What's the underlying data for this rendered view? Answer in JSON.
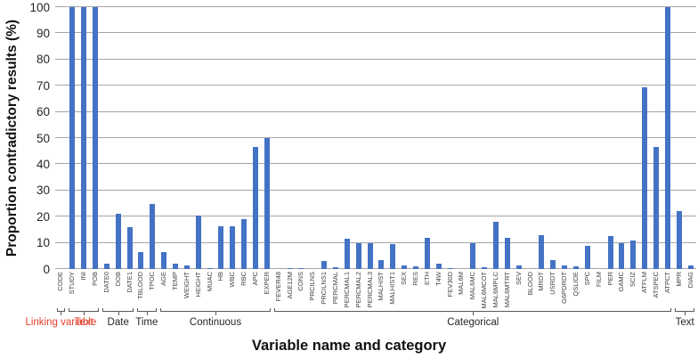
{
  "chart_data": {
    "type": "bar",
    "title": "",
    "ylabel": "Proportion contradictory results (%)",
    "xlabel": "Variable name and category",
    "ylim": [
      0,
      100
    ],
    "yticks": [
      0,
      10,
      20,
      30,
      40,
      50,
      60,
      70,
      80,
      90,
      100
    ],
    "grid": true,
    "legend": "none",
    "bar_color": "#4472C4",
    "gridline_color": "#A6A6A6",
    "axis_text_color": "#262626",
    "highlight_label_color": "#E23F2C",
    "categories": [
      "CODE",
      "STUDY",
      "INI",
      "POB",
      "DATE0",
      "DOB",
      "DATE1",
      "TBLOOD",
      "TPOC",
      "AGE",
      "TEMP",
      "WEIGHT",
      "HEIGHT",
      "MUAC",
      "HB",
      "WBC",
      "RBC",
      "APC",
      "EXPER",
      "FEVER48",
      "AGE12M",
      "CONS",
      "PRCILNS",
      "PRCILNS1",
      "PERCMAL",
      "PERCMAL1",
      "PERCMAL2",
      "PERCMAL3",
      "MALHIST",
      "MALHIST1",
      "SEX",
      "RES",
      "ETH",
      "T4W",
      "FEV30D",
      "MAL6M",
      "MAL6MC",
      "MAL6MCOT",
      "MAL6MPLC",
      "MAL6MTRT",
      "SEV",
      "BLOOD",
      "MRDT",
      "USRDT",
      "G6PDRDT",
      "QSLIDE",
      "SPC",
      "FILM",
      "PER",
      "GAMC",
      "SCIZ",
      "ATFLM",
      "ATSPEC",
      "ATPCT",
      "MPR",
      "DIAG"
    ],
    "values": [
      0,
      100,
      100,
      100,
      2,
      21,
      16,
      6.5,
      25,
      6.5,
      2,
      1.5,
      20.5,
      0.5,
      16.5,
      16.5,
      19,
      46.5,
      50,
      0,
      0.3,
      0.5,
      0,
      3,
      0.7,
      11.5,
      10,
      10,
      3.5,
      9.5,
      1.5,
      1,
      12,
      2,
      0.3,
      0,
      10,
      0.7,
      18,
      12,
      1.5,
      0,
      13,
      3.5,
      1.5,
      1,
      9,
      0,
      12.5,
      10,
      11,
      69.5,
      46.5,
      100,
      22,
      1.5
    ],
    "groups": [
      {
        "label": "Linking variable",
        "start": 0,
        "end": 0,
        "color": "#E23F2C"
      },
      {
        "label": "Text",
        "start": 1,
        "end": 3,
        "color": "#E23F2C"
      },
      {
        "label": "Date",
        "start": 4,
        "end": 6,
        "color": "#262626"
      },
      {
        "label": "Time",
        "start": 7,
        "end": 8,
        "color": "#262626"
      },
      {
        "label": "Continuous",
        "start": 9,
        "end": 18,
        "color": "#262626"
      },
      {
        "label": "Categorical",
        "start": 19,
        "end": 53,
        "color": "#262626"
      },
      {
        "label": "Text",
        "start": 54,
        "end": 55,
        "color": "#262626"
      }
    ]
  }
}
